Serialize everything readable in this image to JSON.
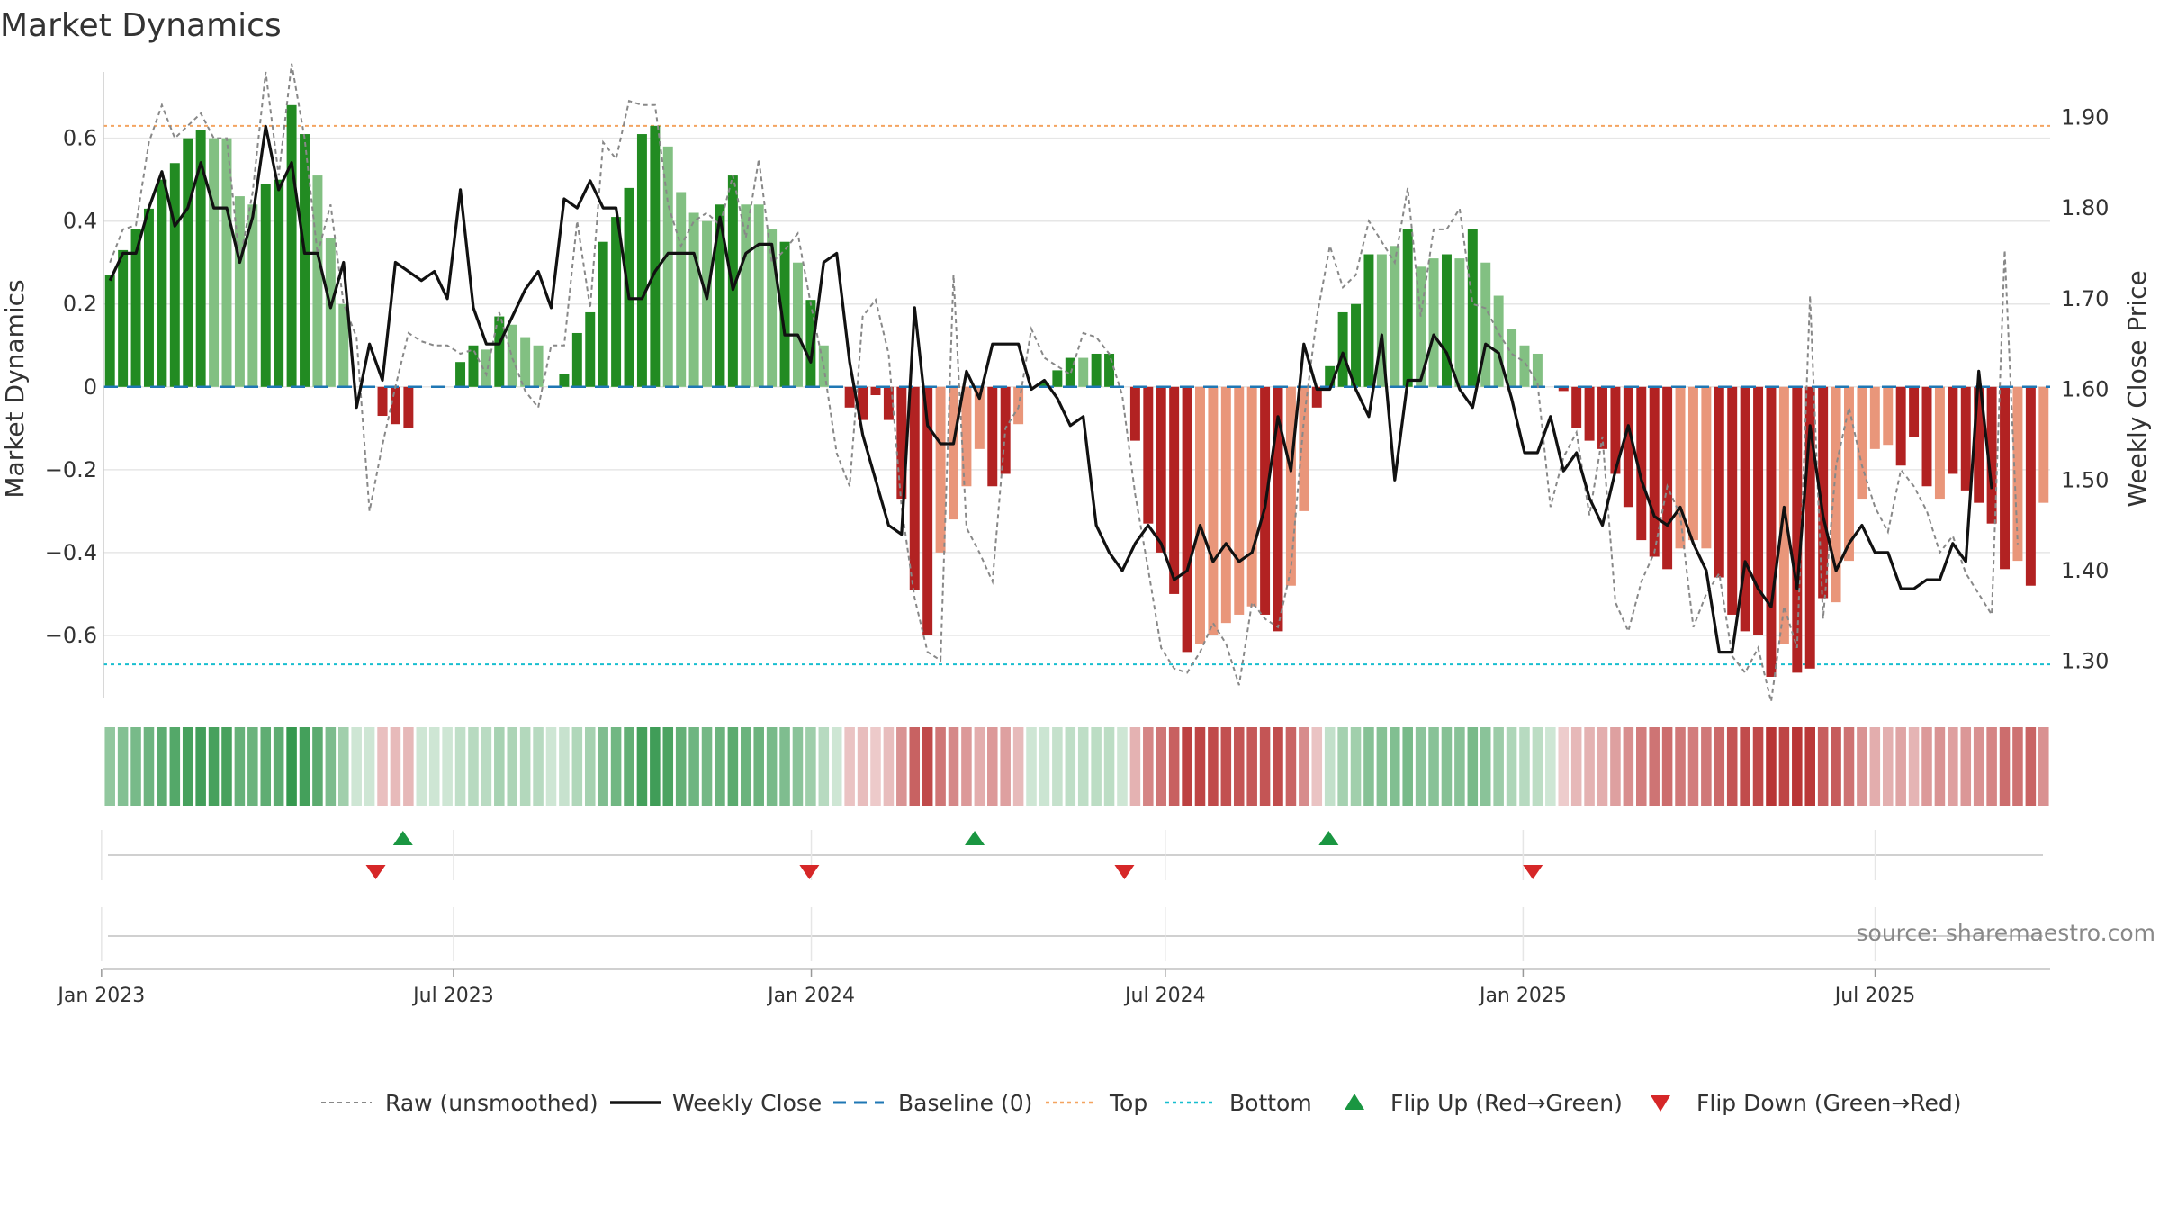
{
  "chart_data": {
    "type": "bar",
    "title": "Market Dynamics",
    "ylabel_left": "Market Dynamics",
    "ylabel_right": "Weekly Close Price",
    "ylim_left": [
      -0.75,
      0.76
    ],
    "ylim_right": [
      1.26,
      1.95
    ],
    "left_ticks": [
      0.6,
      0.4,
      0.2,
      0,
      -0.2,
      -0.4,
      -0.6
    ],
    "left_tick_labels": [
      "0.6",
      "0.4",
      "0.2",
      "0",
      "−0.2",
      "−0.4",
      "−0.6"
    ],
    "right_ticks": [
      1.9,
      1.8,
      1.7,
      1.6,
      1.5,
      1.4,
      1.3
    ],
    "right_tick_labels": [
      "1.90",
      "1.80",
      "1.70",
      "1.60",
      "1.50",
      "1.40",
      "1.30"
    ],
    "x_start": "2023-01-02",
    "x_end": "2025-09-29",
    "x_tick_dates": [
      "2023-01-01",
      "2023-07-01",
      "2024-01-01",
      "2024-07-01",
      "2025-01-01",
      "2025-07-01"
    ],
    "x_tick_labels": [
      "Jan 2023",
      "Jul 2023",
      "Jan 2024",
      "Jul 2024",
      "Jan 2025",
      "Jul 2025"
    ],
    "top_level": 0.63,
    "bottom_level": -0.67,
    "baseline": 0,
    "flip_up_dates": [
      "2023-06-05",
      "2024-03-25",
      "2024-09-23"
    ],
    "flip_down_dates": [
      "2023-05-22",
      "2023-12-31",
      "2024-06-10",
      "2025-01-06"
    ],
    "series": [
      {
        "name": "Market Dynamics",
        "values": [
          0.27,
          0.33,
          0.38,
          0.43,
          0.5,
          0.54,
          0.6,
          0.62,
          0.6,
          0.6,
          0.46,
          0.44,
          0.49,
          0.5,
          0.68,
          0.61,
          0.51,
          0.36,
          0.2,
          0,
          0,
          -0.07,
          -0.09,
          -0.1,
          0,
          0,
          0,
          0.06,
          0.1,
          0.09,
          0.17,
          0.15,
          0.12,
          0.1,
          0,
          0.03,
          0.13,
          0.18,
          0.35,
          0.41,
          0.48,
          0.61,
          0.63,
          0.58,
          0.47,
          0.42,
          0.4,
          0.44,
          0.51,
          0.44,
          0.44,
          0.38,
          0.35,
          0.3,
          0.21,
          0.1,
          0,
          -0.05,
          -0.08,
          -0.02,
          -0.08,
          -0.27,
          -0.49,
          -0.6,
          -0.4,
          -0.32,
          -0.24,
          -0.15,
          -0.24,
          -0.21,
          -0.09,
          0,
          0.01,
          0.04,
          0.07,
          0.07,
          0.08,
          0.08,
          0,
          -0.13,
          -0.33,
          -0.4,
          -0.5,
          -0.64,
          -0.62,
          -0.6,
          -0.57,
          -0.55,
          -0.53,
          -0.55,
          -0.59,
          -0.48,
          -0.3,
          -0.05,
          0.05,
          0.18,
          0.2,
          0.32,
          0.32,
          0.34,
          0.38,
          0.29,
          0.31,
          0.32,
          0.31,
          0.38,
          0.3,
          0.22,
          0.14,
          0.1,
          0.08,
          0,
          -0.01,
          -0.1,
          -0.13,
          -0.15,
          -0.21,
          -0.29,
          -0.37,
          -0.41,
          -0.44,
          -0.39,
          -0.37,
          -0.39,
          -0.46,
          -0.55,
          -0.59,
          -0.6,
          -0.7,
          -0.62,
          -0.69,
          -0.68,
          -0.51,
          -0.52,
          -0.42,
          -0.27,
          -0.15,
          -0.14,
          -0.19,
          -0.12,
          -0.24,
          -0.27,
          -0.21,
          -0.25,
          -0.28,
          -0.33,
          -0.44,
          -0.42,
          -0.48,
          -0.28
        ],
        "strength": [
          3,
          3,
          3,
          3,
          3,
          3,
          3,
          3,
          1,
          1,
          1,
          1,
          3,
          3,
          3,
          3,
          1,
          1,
          1,
          0,
          0,
          2,
          2,
          2,
          0,
          0,
          0,
          3,
          3,
          1,
          3,
          1,
          1,
          1,
          0,
          3,
          3,
          3,
          3,
          3,
          3,
          3,
          3,
          1,
          1,
          1,
          1,
          3,
          3,
          1,
          1,
          1,
          3,
          1,
          3,
          1,
          0,
          2,
          2,
          2,
          2,
          2,
          2,
          2,
          1,
          1,
          1,
          1,
          2,
          2,
          1,
          0,
          3,
          3,
          3,
          1,
          3,
          3,
          0,
          2,
          2,
          2,
          2,
          2,
          1,
          1,
          1,
          1,
          1,
          2,
          2,
          1,
          1,
          3,
          3,
          3,
          3,
          3,
          1,
          1,
          3,
          1,
          1,
          3,
          1,
          3,
          1,
          1,
          1,
          1,
          1,
          0,
          2,
          2,
          2,
          2,
          2,
          2,
          2,
          2,
          2,
          1,
          1,
          1,
          2,
          2,
          2,
          2,
          2,
          1,
          2,
          2,
          2,
          1,
          1,
          1,
          1,
          1,
          2,
          2,
          2,
          1,
          2,
          2,
          2,
          2,
          2,
          1,
          2,
          1
        ]
      },
      {
        "name": "Raw (unsmoothed)",
        "values": [
          0.3,
          0.38,
          0.39,
          0.59,
          0.68,
          0.6,
          0.63,
          0.66,
          0.6,
          0.6,
          0.3,
          0.47,
          0.76,
          0.51,
          0.78,
          0.6,
          0.32,
          0.44,
          0.2,
          0.12,
          -0.3,
          -0.14,
          0,
          0.13,
          0.11,
          0.1,
          0.1,
          0.08,
          0.09,
          0.03,
          0.18,
          0.07,
          -0.01,
          -0.05,
          0.1,
          0.1,
          0.4,
          0.19,
          0.59,
          0.55,
          0.69,
          0.68,
          0.68,
          0.44,
          0.34,
          0.4,
          0.42,
          0.39,
          0.51,
          0.36,
          0.55,
          0.3,
          0.33,
          0.37,
          0.2,
          0.05,
          -0.16,
          -0.24,
          0.17,
          0.21,
          0.08,
          -0.29,
          -0.51,
          -0.64,
          -0.66,
          0.27,
          -0.34,
          -0.4,
          -0.47,
          -0.1,
          -0.05,
          0.14,
          0.07,
          0.05,
          0.03,
          0.13,
          0.12,
          0.08,
          -0.02,
          -0.26,
          -0.44,
          -0.63,
          -0.68,
          -0.69,
          -0.64,
          -0.57,
          -0.62,
          -0.72,
          -0.52,
          -0.56,
          -0.58,
          -0.44,
          -0.08,
          0.17,
          0.34,
          0.24,
          0.27,
          0.4,
          0.35,
          0.3,
          0.48,
          0.17,
          0.38,
          0.38,
          0.43,
          0.2,
          0.19,
          0.13,
          0.08,
          0.06,
          0.01,
          -0.29,
          -0.17,
          -0.11,
          -0.31,
          -0.12,
          -0.52,
          -0.59,
          -0.47,
          -0.4,
          -0.24,
          -0.31,
          -0.58,
          -0.5,
          -0.45,
          -0.65,
          -0.69,
          -0.63,
          -0.76,
          -0.53,
          -0.63,
          0.22,
          -0.56,
          -0.19,
          -0.05,
          -0.19,
          -0.29,
          -0.35,
          -0.2,
          -0.24,
          -0.3,
          -0.4,
          -0.36,
          -0.45,
          -0.5,
          -0.55,
          0.33,
          -0.38
        ]
      },
      {
        "name": "Weekly Close",
        "values": [
          1.72,
          1.75,
          1.75,
          1.8,
          1.84,
          1.78,
          1.8,
          1.85,
          1.8,
          1.8,
          1.74,
          1.79,
          1.89,
          1.82,
          1.85,
          1.75,
          1.75,
          1.69,
          1.74,
          1.58,
          1.65,
          1.61,
          1.74,
          1.73,
          1.72,
          1.73,
          1.7,
          1.82,
          1.69,
          1.65,
          1.65,
          1.68,
          1.71,
          1.73,
          1.69,
          1.81,
          1.8,
          1.83,
          1.8,
          1.8,
          1.7,
          1.7,
          1.73,
          1.75,
          1.75,
          1.75,
          1.7,
          1.79,
          1.71,
          1.75,
          1.76,
          1.76,
          1.66,
          1.66,
          1.63,
          1.74,
          1.75,
          1.63,
          1.55,
          1.5,
          1.45,
          1.44,
          1.69,
          1.56,
          1.54,
          1.54,
          1.62,
          1.59,
          1.65,
          1.65,
          1.65,
          1.6,
          1.61,
          1.59,
          1.56,
          1.57,
          1.45,
          1.42,
          1.4,
          1.43,
          1.45,
          1.43,
          1.39,
          1.4,
          1.45,
          1.41,
          1.43,
          1.41,
          1.42,
          1.47,
          1.57,
          1.51,
          1.65,
          1.6,
          1.6,
          1.64,
          1.6,
          1.57,
          1.66,
          1.5,
          1.61,
          1.61,
          1.66,
          1.64,
          1.6,
          1.58,
          1.65,
          1.64,
          1.59,
          1.53,
          1.53,
          1.57,
          1.51,
          1.53,
          1.48,
          1.45,
          1.51,
          1.56,
          1.5,
          1.46,
          1.45,
          1.47,
          1.43,
          1.4,
          1.31,
          1.31,
          1.41,
          1.38,
          1.36,
          1.47,
          1.38,
          1.56,
          1.46,
          1.4,
          1.43,
          1.45,
          1.42,
          1.42,
          1.38,
          1.38,
          1.39,
          1.39,
          1.43,
          1.41,
          1.62,
          1.49
        ]
      }
    ],
    "colors": {
      "pos_strong": "#228b22",
      "pos_weak": "#82c082",
      "neg_strong": "#b22222",
      "neg_weak": "#e9967a",
      "raw_line": "#888888",
      "close_line": "#111111",
      "baseline": "#1f77b4",
      "top_line": "#f4a460",
      "bottom_line": "#17becf",
      "flip_up": "#1a9641",
      "flip_down": "#d62728",
      "grid": "#e6e6e6"
    },
    "legend": [
      {
        "label": "Raw (unsmoothed)",
        "icon": "dashed-gray-line"
      },
      {
        "label": "Weekly Close",
        "icon": "solid-black-line"
      },
      {
        "label": "Baseline (0)",
        "icon": "dashed-blue-line"
      },
      {
        "label": "Top",
        "icon": "dotted-orange-line"
      },
      {
        "label": "Bottom",
        "icon": "dotted-cyan-line"
      },
      {
        "label": "Flip Up (Red→Green)",
        "icon": "green-triangle-up-icon"
      },
      {
        "label": "Flip Down (Green→Red)",
        "icon": "red-triangle-down-icon"
      }
    ],
    "legend_position": "bottom-center",
    "source": "source: sharemaestro.com"
  }
}
